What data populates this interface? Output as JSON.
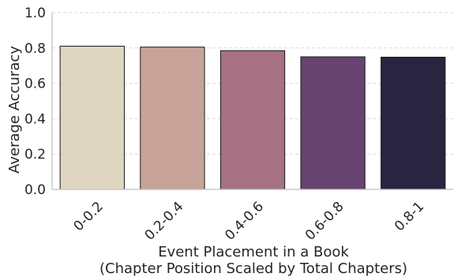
{
  "chart_data": {
    "type": "bar",
    "categories": [
      "0-0.2",
      "0.2-0.4",
      "0.4-0.6",
      "0.6-0.8",
      "0.8-1"
    ],
    "values": [
      0.81,
      0.805,
      0.785,
      0.75,
      0.748
    ],
    "colors": [
      "#dfd6c2",
      "#c7a39a",
      "#a57183",
      "#67436f",
      "#292440"
    ],
    "xlabel_line1": "Event Placement in a Book",
    "xlabel_line2": "(Chapter Position Scaled by Total Chapters)",
    "ylabel": "Average Accuracy",
    "ylim": [
      0,
      1.0
    ],
    "yticks": [
      "0.0",
      "0.2",
      "0.4",
      "0.6",
      "0.8",
      "1.0"
    ],
    "grid": true,
    "grid_style": "dashed horizontal"
  }
}
